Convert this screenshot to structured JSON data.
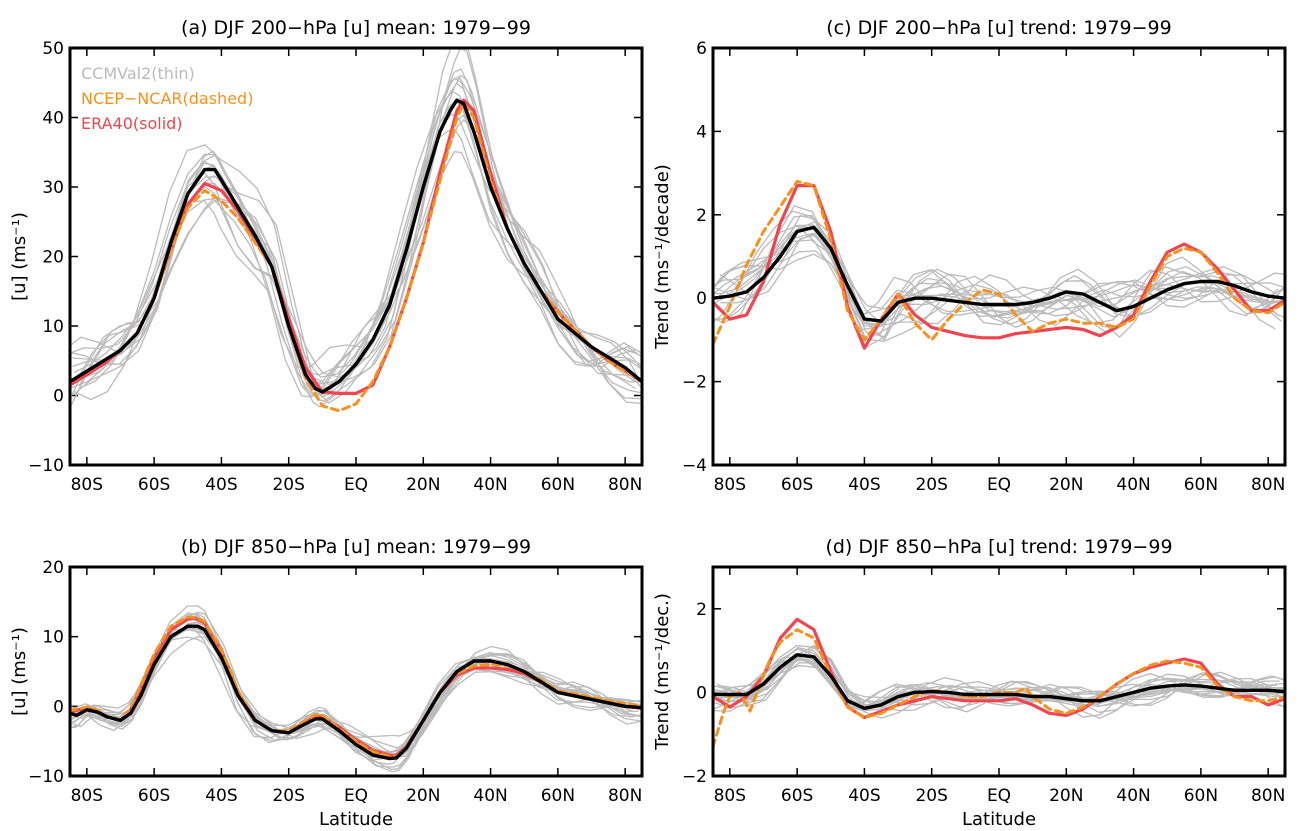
{
  "colors": {
    "ccmval": "#bbbbbb",
    "ncep": "#f5921e",
    "era40": "#f0454f",
    "mmm": "#000000"
  },
  "legend": {
    "ccmval": "CCMVal2(thin)",
    "ncep": "NCEP−NCAR(dashed)",
    "era40": "ERA40(solid)"
  },
  "chart_data": [
    {
      "id": "a",
      "type": "line",
      "title": "(a) DJF 200−hPa [u] mean: 1979−99",
      "xlabel": "",
      "ylabel": "[u] (ms⁻¹)",
      "xlim": [
        -85,
        85
      ],
      "ylim": [
        -10,
        50
      ],
      "yticks": [
        -10,
        0,
        10,
        20,
        30,
        40,
        50
      ],
      "xticks": [
        -80,
        -60,
        -40,
        -20,
        0,
        20,
        40,
        60,
        80
      ],
      "xticklabels": [
        "80S",
        "60S",
        "40S",
        "20S",
        "EQ",
        "20N",
        "40N",
        "60N",
        "80N"
      ],
      "series": [
        {
          "role": "mmm",
          "x": [
            -85,
            -80,
            -75,
            -70,
            -65,
            -60,
            -55,
            -50,
            -45,
            -42,
            -40,
            -35,
            -30,
            -25,
            -20,
            -15,
            -12,
            -10,
            -5,
            0,
            5,
            10,
            15,
            20,
            25,
            28,
            30,
            32,
            35,
            40,
            45,
            50,
            55,
            60,
            65,
            70,
            75,
            80,
            85
          ],
          "y": [
            2,
            3.5,
            5,
            6.5,
            9,
            14,
            22,
            29,
            32.5,
            32.5,
            31,
            27,
            23,
            18.5,
            10,
            3,
            1,
            0.5,
            2,
            4.5,
            8,
            13,
            21,
            30,
            38,
            41,
            42.5,
            42,
            38,
            30,
            24,
            19,
            15,
            11,
            9,
            7,
            5.5,
            4,
            2
          ]
        },
        {
          "role": "era40",
          "x": [
            -85,
            -80,
            -75,
            -70,
            -65,
            -60,
            -55,
            -50,
            -45,
            -40,
            -35,
            -30,
            -25,
            -20,
            -15,
            -10,
            -5,
            0,
            5,
            10,
            15,
            20,
            25,
            30,
            32,
            35,
            40,
            45,
            50,
            55,
            60,
            65,
            70,
            75,
            80,
            85
          ],
          "y": [
            1.5,
            3,
            4.5,
            6.5,
            9,
            14,
            21,
            27.5,
            30.5,
            29.5,
            26.5,
            22.5,
            18.5,
            11,
            4,
            0.5,
            0.3,
            0.3,
            1.5,
            7,
            14,
            22,
            32,
            41,
            42.5,
            41,
            32,
            24,
            19,
            15,
            12,
            9.5,
            7,
            5,
            3.5,
            2
          ]
        },
        {
          "role": "ncep",
          "x": [
            -85,
            -80,
            -75,
            -70,
            -65,
            -60,
            -55,
            -50,
            -45,
            -40,
            -35,
            -30,
            -25,
            -20,
            -15,
            -10,
            -5,
            0,
            5,
            10,
            15,
            20,
            25,
            30,
            32,
            35,
            40,
            45,
            50,
            55,
            60,
            65,
            70,
            75,
            80,
            85
          ],
          "y": [
            2,
            3.5,
            5,
            6.5,
            9,
            14,
            21,
            27,
            29.5,
            28,
            25.5,
            22,
            18.5,
            10,
            2.5,
            -1.5,
            -2.2,
            -1.2,
            2,
            7,
            14,
            22,
            31,
            40,
            42,
            40,
            31,
            24,
            19,
            15,
            12,
            9.5,
            7,
            5,
            3.5,
            2
          ]
        }
      ]
    },
    {
      "id": "c",
      "type": "line",
      "title": "(c) DJF 200−hPa [u] trend: 1979−99",
      "xlabel": "",
      "ylabel": "Trend (ms⁻¹/decade)",
      "xlim": [
        -85,
        85
      ],
      "ylim": [
        -4,
        6
      ],
      "yticks": [
        -4,
        -2,
        0,
        2,
        4,
        6
      ],
      "xticks": [
        -80,
        -60,
        -40,
        -20,
        0,
        20,
        40,
        60,
        80
      ],
      "xticklabels": [
        "80S",
        "60S",
        "40S",
        "20S",
        "EQ",
        "20N",
        "40N",
        "60N",
        "80N"
      ],
      "series": [
        {
          "role": "mmm",
          "x": [
            -85,
            -80,
            -75,
            -70,
            -65,
            -60,
            -55,
            -50,
            -45,
            -40,
            -35,
            -30,
            -25,
            -20,
            -15,
            -10,
            -5,
            0,
            5,
            10,
            15,
            20,
            25,
            30,
            35,
            40,
            45,
            50,
            55,
            60,
            65,
            70,
            75,
            80,
            85
          ],
          "y": [
            0,
            0.05,
            0.15,
            0.5,
            1,
            1.6,
            1.7,
            1.2,
            0.3,
            -0.5,
            -0.55,
            -0.1,
            0,
            0,
            -0.05,
            -0.1,
            -0.15,
            -0.15,
            -0.15,
            -0.1,
            0,
            0.15,
            0.1,
            -0.1,
            -0.3,
            -0.2,
            0,
            0.2,
            0.35,
            0.4,
            0.4,
            0.3,
            0.15,
            0.05,
            0
          ]
        },
        {
          "role": "era40",
          "x": [
            -85,
            -80,
            -75,
            -70,
            -65,
            -60,
            -55,
            -50,
            -45,
            -40,
            -35,
            -30,
            -25,
            -20,
            -15,
            -10,
            -5,
            0,
            5,
            10,
            15,
            20,
            25,
            30,
            35,
            40,
            45,
            50,
            55,
            60,
            65,
            70,
            75,
            80,
            85
          ],
          "y": [
            -0.1,
            -0.5,
            -0.4,
            0.4,
            1.8,
            2.7,
            2.7,
            1.6,
            -0.2,
            -1.2,
            -0.5,
            0.1,
            -0.4,
            -0.7,
            -0.8,
            -0.9,
            -0.95,
            -0.95,
            -0.85,
            -0.8,
            -0.75,
            -0.7,
            -0.75,
            -0.9,
            -0.7,
            -0.4,
            0.4,
            1.1,
            1.3,
            1.1,
            0.7,
            0.2,
            -0.3,
            -0.3,
            -0.05
          ]
        },
        {
          "role": "ncep",
          "x": [
            -85,
            -80,
            -75,
            -70,
            -65,
            -60,
            -55,
            -50,
            -45,
            -40,
            -35,
            -30,
            -25,
            -20,
            -15,
            -10,
            -5,
            0,
            5,
            10,
            15,
            20,
            25,
            30,
            35,
            40,
            45,
            50,
            55,
            60,
            65,
            70,
            75,
            80,
            85
          ],
          "y": [
            -1.1,
            -0.2,
            0.8,
            1.6,
            2.2,
            2.8,
            2.7,
            1.4,
            -0.3,
            -1.0,
            -0.5,
            0.1,
            -0.6,
            -1.0,
            -0.5,
            -0.1,
            0.2,
            0.1,
            -0.4,
            -0.8,
            -0.6,
            -0.5,
            -0.6,
            -0.6,
            -0.7,
            -0.5,
            0.3,
            1.0,
            1.2,
            1.1,
            0.6,
            0,
            -0.3,
            -0.35,
            -0.1
          ]
        }
      ]
    },
    {
      "id": "b",
      "type": "line",
      "title": "(b) DJF 850−hPa [u] mean: 1979−99",
      "xlabel": "Latitude",
      "ylabel": "[u] (ms⁻¹)",
      "xlim": [
        -85,
        85
      ],
      "ylim": [
        -10,
        20
      ],
      "yticks": [
        -10,
        0,
        10,
        20
      ],
      "xticks": [
        -80,
        -60,
        -40,
        -20,
        0,
        20,
        40,
        60,
        80
      ],
      "xticklabels": [
        "80S",
        "60S",
        "40S",
        "20S",
        "EQ",
        "20N",
        "40N",
        "60N",
        "80N"
      ],
      "series": [
        {
          "role": "mmm",
          "x": [
            -85,
            -83,
            -80,
            -77,
            -74,
            -70,
            -67,
            -64,
            -60,
            -55,
            -50,
            -47,
            -45,
            -40,
            -35,
            -30,
            -25,
            -20,
            -15,
            -12,
            -10,
            -5,
            0,
            5,
            10,
            12,
            15,
            20,
            25,
            30,
            35,
            40,
            45,
            50,
            55,
            60,
            65,
            70,
            75,
            80,
            85
          ],
          "y": [
            -1,
            -1.3,
            -0.5,
            -0.8,
            -1.5,
            -2,
            -1,
            1.5,
            6,
            10,
            11.5,
            11.5,
            11,
            7,
            1.5,
            -2,
            -3.5,
            -3.8,
            -2.5,
            -1.8,
            -1.8,
            -3.5,
            -5.5,
            -7,
            -7.5,
            -7.4,
            -6,
            -2,
            2,
            5,
            6.5,
            6.5,
            6,
            5,
            3.5,
            2,
            1.5,
            1,
            0.5,
            0,
            -0.2
          ]
        },
        {
          "role": "era40",
          "x": [
            -85,
            -80,
            -77,
            -74,
            -70,
            -67,
            -64,
            -60,
            -55,
            -50,
            -48,
            -45,
            -40,
            -35,
            -30,
            -25,
            -20,
            -15,
            -12,
            -10,
            -5,
            0,
            5,
            10,
            12,
            15,
            20,
            25,
            30,
            35,
            40,
            45,
            50,
            55,
            60,
            65,
            70,
            75,
            80,
            85
          ],
          "y": [
            -0.8,
            -0.2,
            -0.6,
            -1.5,
            -2,
            -0.5,
            2.5,
            7,
            11,
            12.5,
            12.7,
            12,
            8,
            2,
            -2,
            -3.5,
            -3.8,
            -2.2,
            -1.5,
            -1.5,
            -3,
            -4.8,
            -6.3,
            -7,
            -7,
            -5.8,
            -2,
            2,
            4.5,
            5.5,
            5.5,
            5.3,
            4.7,
            3.5,
            2,
            1.5,
            1,
            0.5,
            0,
            -0.3
          ]
        },
        {
          "role": "ncep",
          "x": [
            -85,
            -80,
            -77,
            -74,
            -70,
            -67,
            -64,
            -60,
            -55,
            -50,
            -48,
            -45,
            -40,
            -35,
            -30,
            -25,
            -20,
            -15,
            -12,
            -10,
            -5,
            0,
            5,
            10,
            12,
            15,
            20,
            25,
            30,
            35,
            40,
            45,
            50,
            55,
            60,
            65,
            70,
            75,
            80,
            85
          ],
          "y": [
            -0.6,
            -0.1,
            -0.5,
            -1.5,
            -2,
            -0.3,
            3,
            7.5,
            11.5,
            12.8,
            12.8,
            12.2,
            8.2,
            2.2,
            -2,
            -3.5,
            -3.5,
            -2,
            -1.2,
            -1.3,
            -3.2,
            -5,
            -6.5,
            -7.2,
            -7.2,
            -6,
            -2,
            2.2,
            4.7,
            5.8,
            6,
            5.8,
            5,
            3.8,
            2.2,
            1.8,
            1.3,
            0.8,
            0.4,
            0
          ]
        }
      ]
    },
    {
      "id": "d",
      "type": "line",
      "title": "(d) DJF 850−hPa [u] trend: 1979−99",
      "xlabel": "Latitude",
      "ylabel": "Trend (ms⁻¹/dec.)",
      "xlim": [
        -85,
        85
      ],
      "ylim": [
        -2,
        3
      ],
      "yticks": [
        -2,
        0,
        2
      ],
      "xticks": [
        -80,
        -60,
        -40,
        -20,
        0,
        20,
        40,
        60,
        80
      ],
      "xticklabels": [
        "80S",
        "60S",
        "40S",
        "20S",
        "EQ",
        "20N",
        "40N",
        "60N",
        "80N"
      ],
      "series": [
        {
          "role": "mmm",
          "x": [
            -85,
            -80,
            -75,
            -70,
            -65,
            -60,
            -55,
            -50,
            -45,
            -40,
            -35,
            -30,
            -25,
            -20,
            -15,
            -10,
            -5,
            0,
            5,
            10,
            15,
            20,
            25,
            30,
            35,
            40,
            45,
            50,
            55,
            60,
            65,
            70,
            75,
            80,
            85
          ],
          "y": [
            -0.05,
            -0.05,
            -0.05,
            0.2,
            0.6,
            0.9,
            0.85,
            0.4,
            -0.2,
            -0.38,
            -0.3,
            -0.1,
            0,
            0.02,
            0,
            -0.05,
            -0.05,
            -0.05,
            -0.05,
            -0.1,
            -0.1,
            -0.15,
            -0.2,
            -0.2,
            -0.1,
            0,
            0.1,
            0.15,
            0.18,
            0.15,
            0.1,
            0.05,
            0.05,
            0.05,
            0.02
          ]
        },
        {
          "role": "era40",
          "x": [
            -85,
            -80,
            -75,
            -70,
            -65,
            -60,
            -55,
            -50,
            -45,
            -40,
            -35,
            -30,
            -25,
            -20,
            -15,
            -10,
            -5,
            0,
            5,
            10,
            15,
            20,
            25,
            30,
            35,
            40,
            45,
            50,
            55,
            60,
            65,
            70,
            75,
            80,
            85
          ],
          "y": [
            -0.1,
            -0.35,
            -0.1,
            0.4,
            1.3,
            1.75,
            1.5,
            0.5,
            -0.35,
            -0.6,
            -0.45,
            -0.3,
            -0.2,
            -0.1,
            -0.15,
            -0.2,
            -0.2,
            -0.2,
            -0.15,
            -0.3,
            -0.5,
            -0.55,
            -0.4,
            -0.1,
            0.2,
            0.45,
            0.6,
            0.7,
            0.8,
            0.7,
            0.2,
            -0.1,
            -0.1,
            -0.3,
            -0.15
          ]
        },
        {
          "role": "ncep",
          "x": [
            -85,
            -82,
            -80,
            -77,
            -74,
            -71,
            -68,
            -65,
            -60,
            -55,
            -50,
            -45,
            -40,
            -35,
            -30,
            -25,
            -20,
            -15,
            -10,
            -5,
            0,
            5,
            8,
            10,
            15,
            20,
            25,
            30,
            35,
            40,
            45,
            50,
            55,
            60,
            65,
            70,
            75,
            80,
            85
          ],
          "y": [
            -1.3,
            -0.5,
            -0.1,
            0,
            -0.45,
            0.2,
            0.8,
            1.2,
            1.5,
            1.3,
            0.4,
            -0.35,
            -0.6,
            -0.5,
            -0.3,
            -0.1,
            0.05,
            0,
            -0.1,
            -0.1,
            0,
            0,
            0.1,
            -0.1,
            -0.4,
            -0.5,
            -0.35,
            -0.1,
            0.2,
            0.45,
            0.65,
            0.75,
            0.7,
            0.6,
            0.15,
            -0.1,
            -0.2,
            -0.2,
            -0.1
          ]
        }
      ]
    }
  ]
}
